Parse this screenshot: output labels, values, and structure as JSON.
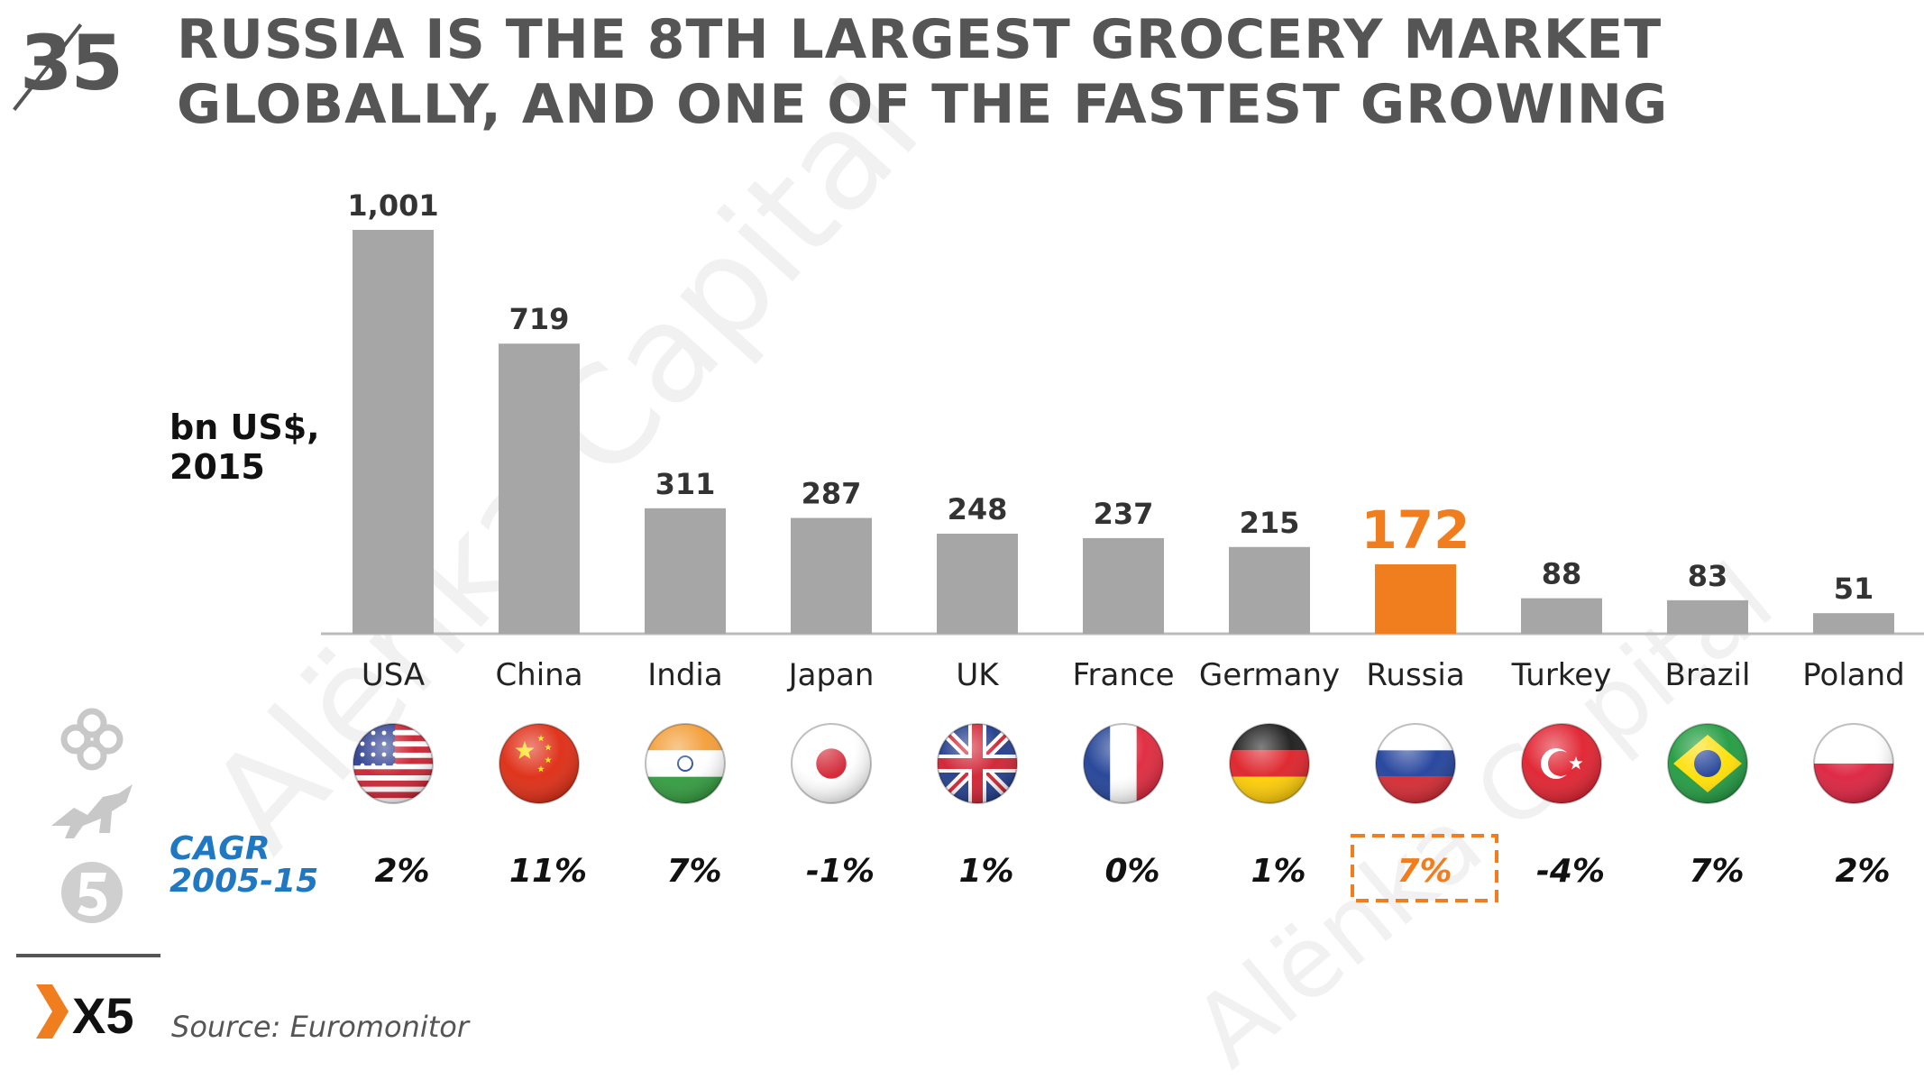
{
  "slide": {
    "number": "35",
    "title_line1": "RUSSIA IS THE 8TH LARGEST GROCERY MARKET",
    "title_line2": "GLOBALLY, AND ONE OF THE FASTEST GROWING",
    "unit_line1": "bn US$,",
    "unit_line2": "2015",
    "cagr_label_line1": "CAGR",
    "cagr_label_line2": "2005-15",
    "source": "Source: Euromonitor",
    "brand": "X5",
    "watermark": "Alёnka Capital"
  },
  "colors": {
    "bar": "#a6a6a6",
    "highlight": "#f07d1e",
    "text_dark": "#333333",
    "title": "#555555",
    "cagr_label": "#1f78c1"
  },
  "chart_data": {
    "type": "bar",
    "categories": [
      "USA",
      "China",
      "India",
      "Japan",
      "UK",
      "France",
      "Germany",
      "Russia",
      "Turkey",
      "Brazil",
      "Poland"
    ],
    "values": [
      1001,
      719,
      311,
      287,
      248,
      237,
      215,
      172,
      88,
      83,
      51
    ],
    "value_labels": [
      "1,001",
      "719",
      "311",
      "287",
      "248",
      "237",
      "215",
      "172",
      "88",
      "83",
      "51"
    ],
    "cagr": [
      "2%",
      "11%",
      "7%",
      "-1%",
      "1%",
      "0%",
      "1%",
      "7%",
      "-4%",
      "7%",
      "2%"
    ],
    "highlight_category": "Russia",
    "ylabel": "bn US$, 2015",
    "ylim": [
      0,
      1001
    ],
    "grid": false,
    "flags": [
      "usa-flag-icon",
      "china-flag-icon",
      "india-flag-icon",
      "japan-flag-icon",
      "uk-flag-icon",
      "france-flag-icon",
      "germany-flag-icon",
      "russia-flag-icon",
      "turkey-flag-icon",
      "brazil-flag-icon",
      "poland-flag-icon"
    ]
  }
}
